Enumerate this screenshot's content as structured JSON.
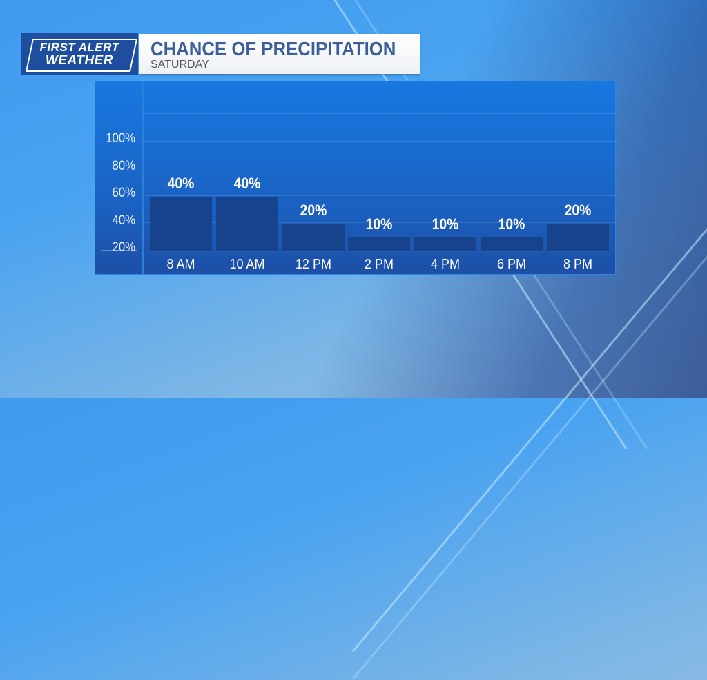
{
  "logo": {
    "line1": "FIRST ALERT",
    "line2": "WEATHER"
  },
  "header": {
    "title": "CHANCE OF PRECIPITATION",
    "subtitle": "SATURDAY"
  },
  "colors": {
    "bar": "#17428a",
    "panel": "#1a63c4",
    "title": "#3c5f9a"
  },
  "chart_data": {
    "type": "bar",
    "title": "CHANCE OF PRECIPITATION",
    "subtitle": "SATURDAY",
    "categories": [
      "8 AM",
      "10 AM",
      "12 PM",
      "2 PM",
      "4 PM",
      "6 PM",
      "8 PM"
    ],
    "values": [
      40,
      40,
      20,
      10,
      10,
      10,
      20
    ],
    "data_labels": [
      "40%",
      "40%",
      "20%",
      "10%",
      "10%",
      "10%",
      "20%"
    ],
    "ytick_labels": [
      "20%",
      "40%",
      "60%",
      "80%",
      "100%"
    ],
    "yticks": [
      20,
      40,
      60,
      80,
      100
    ],
    "ylim": [
      0,
      100
    ],
    "grid": true
  }
}
